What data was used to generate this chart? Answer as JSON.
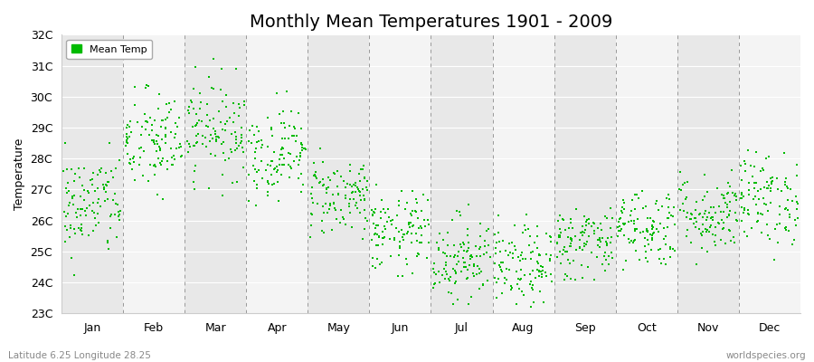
{
  "title": "Monthly Mean Temperatures 1901 - 2009",
  "ylabel": "Temperature",
  "subtitle_left": "Latitude 6.25 Longitude 28.25",
  "subtitle_right": "worldspecies.org",
  "legend_label": "Mean Temp",
  "dot_color": "#00bb00",
  "background_color": "#ffffff",
  "band_colors": [
    "#e8e8e8",
    "#f4f4f4"
  ],
  "ylim_min": 23,
  "ylim_max": 32,
  "months": [
    "Jan",
    "Feb",
    "Mar",
    "Apr",
    "May",
    "Jun",
    "Jul",
    "Aug",
    "Sep",
    "Oct",
    "Nov",
    "Dec"
  ],
  "month_means": [
    26.5,
    28.5,
    29.0,
    28.2,
    26.8,
    25.6,
    24.8,
    24.5,
    25.3,
    25.8,
    26.2,
    26.7
  ],
  "month_stds": [
    0.85,
    0.85,
    0.8,
    0.75,
    0.65,
    0.65,
    0.7,
    0.65,
    0.6,
    0.65,
    0.65,
    0.75
  ],
  "month_mins": [
    23.8,
    24.2,
    26.8,
    26.5,
    25.4,
    24.2,
    23.3,
    23.1,
    24.1,
    24.2,
    24.6,
    23.6
  ],
  "month_maxs": [
    28.5,
    30.5,
    32.0,
    30.8,
    29.0,
    27.8,
    27.3,
    27.2,
    27.3,
    27.8,
    28.5,
    29.5
  ],
  "n_years": 109,
  "title_fontsize": 14,
  "axis_label_fontsize": 9,
  "tick_fontsize": 9
}
